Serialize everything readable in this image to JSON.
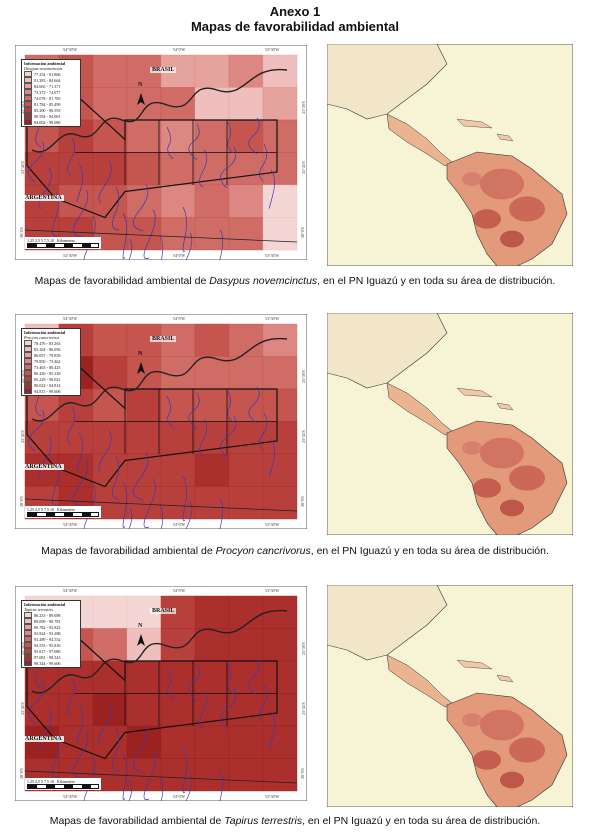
{
  "header": {
    "title": "Anexo 1",
    "subtitle": "Mapas de favorabilidad ambiental"
  },
  "common": {
    "legend_title": "Información ambiental",
    "label_brasil": "BRASIL",
    "label_argentina": "ARGENTINA",
    "north": "N",
    "lon_left": "54°30'W",
    "lon_mid": "54°0'W",
    "lon_right": "53°30'W",
    "lat_top": "25°30'S",
    "lat_mid": "25°45'S",
    "lat_bot": "26°0'S",
    "scale_text": "1,25 2,5   5   7,5   10",
    "scale_unit": "Kilometers"
  },
  "sections": [
    {
      "species": "Dasypus novemcinctus",
      "caption_pre": "Mapas de favorabilidad ambiental de ",
      "caption_post": ", en el PN Iguazú y en toda su área de distribución.",
      "legend": [
        "77.254 - 81.866",
        "81.283 - 84.664",
        "84.665 - 71.371",
        "73.372 - 74.077",
        "74.078 - 81.783",
        "81.784 - 85.499",
        "85.200 - 90.593",
        "90.594 - 94.001",
        "94.002 - 99.080"
      ]
    },
    {
      "species": "Procyon cancrivorus",
      "caption_pre": "Mapas de favorabilidad ambiental de ",
      "caption_post": ", en el PN Iguazú y en toda su área de distribución.",
      "legend": [
        "78.476 - 83.263",
        "83.264 - 86.056",
        "86.057 - 79.839",
        "79.850 - 73.462",
        "73.463 - 80.425",
        "80.426 - 85.228",
        "85.229 - 90.021",
        "90.022 - 94.814",
        "94.815 - 99.606"
      ]
    },
    {
      "species": "Tapirus terrestris",
      "caption_pre": "Mapas de favorabilidad ambiental de ",
      "caption_post": ", en el PN Iguazú y en toda su área de distribución.",
      "legend": [
        "86.233 - 89.698",
        "89.699 - 90.781",
        "90.782 - 92.823",
        "92.824 - 93.288",
        "93.289 - 94.552",
        "94.553 - 95.816",
        "95.817 - 97.080",
        "97.081 - 98.343",
        "98.344 - 99.606"
      ]
    }
  ],
  "colors": {
    "ramp": [
      "#f3d6d4",
      "#eebfbc",
      "#e6a29d",
      "#dc8781",
      "#d06c66",
      "#c4554f",
      "#b8403c",
      "#ab2f2c",
      "#9c2221"
    ],
    "ocean": "#f7f4d6",
    "river": "#3b3ab0"
  }
}
